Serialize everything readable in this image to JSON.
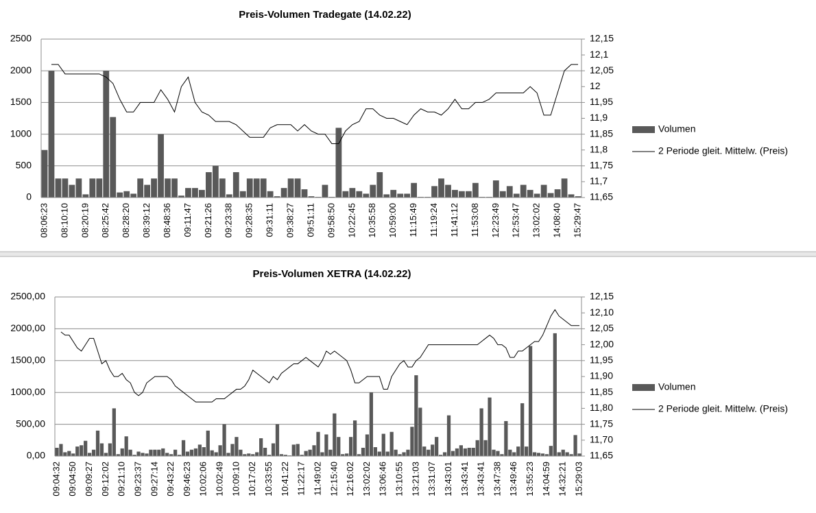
{
  "chart_data": [
    {
      "type": "bar_line",
      "title": "Preis-Volumen Tradegate (14.02.22)",
      "categories": [
        "08:06:23",
        null,
        null,
        "08:10:10",
        null,
        null,
        "08:20:19",
        null,
        null,
        "08:25:42",
        null,
        null,
        "08:28:20",
        null,
        null,
        "08:39:12",
        null,
        null,
        "08:48:36",
        null,
        null,
        "09:11:47",
        null,
        null,
        "09:21:26",
        null,
        null,
        "09:23:38",
        null,
        null,
        "09:28:35",
        null,
        null,
        "09:31:11",
        null,
        null,
        "09:38:27",
        null,
        null,
        "09:51:11",
        null,
        null,
        "09:58:50",
        null,
        null,
        "10:22:45",
        null,
        null,
        "10:35:58",
        null,
        null,
        "10:59:00",
        null,
        null,
        "11:15:49",
        null,
        null,
        "11:19:24",
        null,
        null,
        "11:41:12",
        null,
        null,
        "11:53:08",
        null,
        null,
        "12:23:49",
        null,
        null,
        "12:53:47",
        null,
        null,
        "13:02:02",
        null,
        null,
        "14:08:40",
        null,
        null,
        "15:29:47"
      ],
      "series": [
        {
          "name": "Volumen",
          "type": "bar",
          "color": "#595959",
          "values": [
            750,
            2000,
            300,
            300,
            200,
            300,
            50,
            300,
            300,
            2000,
            1270,
            80,
            100,
            60,
            300,
            200,
            300,
            1000,
            300,
            300,
            30,
            150,
            150,
            120,
            400,
            500,
            300,
            50,
            400,
            100,
            300,
            300,
            300,
            100,
            20,
            150,
            300,
            300,
            130,
            20,
            10,
            200,
            10,
            1100,
            100,
            150,
            100,
            60,
            200,
            400,
            50,
            120,
            60,
            60,
            230,
            10,
            10,
            180,
            300,
            200,
            120,
            100,
            100,
            230,
            10,
            10,
            270,
            100,
            180,
            60,
            200,
            120,
            60,
            200,
            70,
            130,
            300,
            50,
            20
          ]
        },
        {
          "name": "2 Periode gleit. Mittelw. (Preis)",
          "type": "line",
          "axis": "y2",
          "color": "#000000",
          "values": [
            null,
            12.07,
            12.07,
            12.04,
            12.04,
            12.04,
            12.04,
            12.04,
            12.04,
            12.03,
            12.01,
            11.96,
            11.92,
            11.92,
            11.95,
            11.95,
            11.95,
            11.99,
            11.96,
            11.92,
            12.0,
            12.03,
            11.95,
            11.92,
            11.91,
            11.89,
            11.89,
            11.89,
            11.88,
            11.86,
            11.84,
            11.84,
            11.84,
            11.87,
            11.88,
            11.88,
            11.88,
            11.86,
            11.88,
            11.86,
            11.85,
            11.85,
            11.82,
            11.82,
            11.86,
            11.88,
            11.89,
            11.93,
            11.93,
            11.91,
            11.9,
            11.9,
            11.89,
            11.88,
            11.91,
            11.93,
            11.92,
            11.92,
            11.91,
            11.93,
            11.96,
            11.93,
            11.93,
            11.95,
            11.95,
            11.96,
            11.98,
            11.98,
            11.98,
            11.98,
            11.98,
            12.0,
            11.98,
            11.91,
            11.91,
            11.98,
            12.05,
            12.07,
            12.07
          ]
        }
      ],
      "ylim": [
        0,
        2500
      ],
      "yticks": [
        0,
        500,
        1000,
        1500,
        2000,
        2500
      ],
      "y2lim": [
        11.65,
        12.15
      ],
      "y2ticks": [
        {
          "value": 11.65,
          "label": "11,65"
        },
        {
          "value": 11.7,
          "label": "11,7"
        },
        {
          "value": 11.75,
          "label": "11,75"
        },
        {
          "value": 11.8,
          "label": "11,8"
        },
        {
          "value": 11.85,
          "label": "11,85"
        },
        {
          "value": 11.9,
          "label": "11,9"
        },
        {
          "value": 11.95,
          "label": "11,95"
        },
        12,
        {
          "value": 12.05,
          "label": "12,05"
        },
        {
          "value": 12.1,
          "label": "12,1"
        },
        {
          "value": 12.15,
          "label": "12,15"
        }
      ],
      "grid": true,
      "legend": "right"
    },
    {
      "type": "bar_line",
      "title": "Preis-Volumen XETRA (14.02.22)",
      "categories": [
        "09:04:32",
        null,
        null,
        null,
        "09:04:50",
        null,
        null,
        null,
        "09:09:27",
        null,
        null,
        null,
        "09:12:02",
        null,
        null,
        null,
        "09:21:10",
        null,
        null,
        null,
        "09:23:37",
        null,
        null,
        null,
        "09:27:14",
        null,
        null,
        null,
        "09:43:22",
        null,
        null,
        null,
        "09:46:23",
        null,
        null,
        null,
        "10:02:06",
        null,
        null,
        null,
        "10:02:49",
        null,
        null,
        null,
        "10:09:10",
        null,
        null,
        null,
        "10:17:02",
        null,
        null,
        null,
        "10:33:55",
        null,
        null,
        null,
        "10:41:22",
        null,
        null,
        null,
        "11:22:17",
        null,
        null,
        null,
        "11:49:02",
        null,
        null,
        null,
        "12:15:40",
        null,
        null,
        null,
        "12:16:02",
        null,
        null,
        null,
        "13:02:02",
        null,
        null,
        null,
        "13:06:46",
        null,
        null,
        null,
        "13:10:55",
        null,
        null,
        null,
        "13:21:03",
        null,
        null,
        null,
        "13:31:07",
        null,
        null,
        null,
        "13:43:01",
        null,
        null,
        null,
        "13:43:41",
        null,
        null,
        null,
        "13:43:41",
        null,
        null,
        null,
        "13:47:38",
        null,
        null,
        null,
        "13:49:46",
        null,
        null,
        null,
        "13:55:23",
        null,
        null,
        null,
        "14:04:59",
        null,
        null,
        null,
        "14:32:21",
        null,
        null,
        null,
        "15:29:03"
      ],
      "series": [
        {
          "name": "Volumen",
          "type": "bar",
          "color": "#595959",
          "values": [
            130,
            190,
            60,
            80,
            40,
            150,
            170,
            240,
            50,
            100,
            400,
            200,
            50,
            200,
            750,
            30,
            120,
            310,
            100,
            20,
            70,
            50,
            40,
            100,
            100,
            100,
            120,
            50,
            30,
            100,
            20,
            250,
            70,
            100,
            120,
            180,
            140,
            400,
            90,
            60,
            170,
            500,
            50,
            190,
            300,
            100,
            30,
            40,
            30,
            60,
            280,
            130,
            20,
            200,
            500,
            30,
            20,
            10,
            180,
            190,
            20,
            80,
            100,
            170,
            380,
            60,
            340,
            100,
            670,
            300,
            30,
            40,
            300,
            560,
            30,
            130,
            340,
            1000,
            140,
            70,
            350,
            70,
            380,
            100,
            30,
            60,
            100,
            460,
            1270,
            760,
            150,
            100,
            180,
            300,
            20,
            60,
            640,
            80,
            120,
            170,
            120,
            130,
            130,
            250,
            750,
            250,
            920,
            100,
            80,
            30,
            550,
            100,
            60,
            150,
            830,
            150,
            1730,
            60,
            50,
            40,
            30,
            160,
            1930,
            60,
            100,
            60,
            30,
            330,
            40
          ]
        },
        {
          "name": "2 Periode gleit. Mittelw. (Preis)",
          "type": "line",
          "axis": "y2",
          "color": "#000000",
          "values": [
            null,
            12.04,
            12.03,
            12.03,
            12.01,
            11.99,
            11.98,
            12.0,
            12.02,
            12.02,
            11.98,
            11.94,
            11.95,
            11.92,
            11.9,
            11.9,
            11.91,
            11.89,
            11.88,
            11.85,
            11.84,
            11.85,
            11.88,
            11.89,
            11.9,
            11.9,
            11.9,
            11.9,
            11.89,
            11.87,
            11.86,
            11.85,
            11.84,
            11.83,
            11.82,
            11.82,
            11.82,
            11.82,
            11.82,
            11.83,
            11.83,
            11.83,
            11.84,
            11.85,
            11.86,
            11.86,
            11.87,
            11.89,
            11.92,
            11.91,
            11.9,
            11.89,
            11.88,
            11.9,
            11.89,
            11.91,
            11.92,
            11.93,
            11.94,
            11.94,
            11.95,
            11.96,
            11.95,
            11.94,
            11.93,
            11.95,
            11.98,
            11.97,
            11.98,
            11.97,
            11.96,
            11.95,
            11.92,
            11.88,
            11.88,
            11.89,
            11.9,
            11.9,
            11.9,
            11.9,
            11.86,
            11.86,
            11.9,
            11.92,
            11.94,
            11.95,
            11.93,
            11.93,
            11.95,
            11.96,
            11.98,
            12.0,
            12.0,
            12.0,
            12.0,
            12.0,
            12.0,
            12.0,
            12.0,
            12.0,
            12.0,
            12.0,
            12.0,
            12.0,
            12.01,
            12.02,
            12.03,
            12.02,
            12.0,
            12.0,
            11.99,
            11.96,
            11.96,
            11.98,
            11.98,
            11.99,
            12.0,
            12.01,
            12.01,
            12.03,
            12.06,
            12.09,
            12.11,
            12.09,
            12.08,
            12.07,
            12.06,
            12.06,
            12.06
          ]
        }
      ],
      "ylim": [
        0,
        2500
      ],
      "yticks": [
        {
          "value": 0,
          "label": "0,00"
        },
        {
          "value": 500,
          "label": "500,00"
        },
        {
          "value": 1000,
          "label": "1000,00"
        },
        {
          "value": 1500,
          "label": "1500,00"
        },
        {
          "value": 2000,
          "label": "2000,00"
        },
        {
          "value": 2500,
          "label": "2500,00"
        }
      ],
      "y2lim": [
        11.65,
        12.15
      ],
      "y2ticks": [
        {
          "value": 11.65,
          "label": "11,65"
        },
        {
          "value": 11.7,
          "label": "11,70"
        },
        {
          "value": 11.75,
          "label": "11,75"
        },
        {
          "value": 11.8,
          "label": "11,80"
        },
        {
          "value": 11.85,
          "label": "11,85"
        },
        {
          "value": 11.9,
          "label": "11,90"
        },
        {
          "value": 11.95,
          "label": "11,95"
        },
        {
          "value": 12,
          "label": "12,00"
        },
        {
          "value": 12.05,
          "label": "12,05"
        },
        {
          "value": 12.1,
          "label": "12,10"
        },
        {
          "value": 12.15,
          "label": "12,15"
        }
      ],
      "grid": true,
      "legend": "right"
    }
  ]
}
